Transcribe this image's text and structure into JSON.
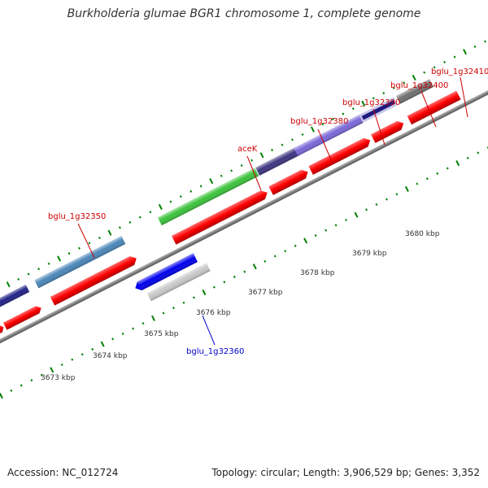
{
  "title": "Burkholderia glumae BGR1 chromosome 1, complete genome",
  "footer": {
    "accession": "Accession: NC_012724",
    "summary": "Topology: circular; Length: 3,906,529 bp; Genes: 3,352"
  },
  "colors": {
    "axis": "#808080",
    "cds": "#ff0000",
    "tick": "#008000",
    "label_forward": "#cc0000",
    "label_reverse": "#0000cc"
  },
  "ticks_kbp": [
    {
      "label": "3673 kbp",
      "kbp": 3673
    },
    {
      "label": "3674 kbp",
      "kbp": 3674
    },
    {
      "label": "3675 kbp",
      "kbp": 3675
    },
    {
      "label": "3676 kbp",
      "kbp": 3676
    },
    {
      "label": "3677 kbp",
      "kbp": 3677
    },
    {
      "label": "3678 kbp",
      "kbp": 3678
    },
    {
      "label": "3679 kbp",
      "kbp": 3679
    },
    {
      "label": "3680 kbp",
      "kbp": 3680
    }
  ],
  "genes": [
    {
      "name": "bglu_1g32350",
      "strand": "forward",
      "color": "#4a86b8",
      "labeled": true
    },
    {
      "name": "bglu_1g32360",
      "strand": "reverse",
      "color": "#0000ee",
      "labeled": true
    },
    {
      "name": "aceK",
      "strand": "forward",
      "color": "#3cc23c",
      "labeled": true
    },
    {
      "name": "bglu_1g32380",
      "strand": "forward",
      "color": "#3d3580",
      "labeled": true
    },
    {
      "name": "bglu_1g32390",
      "strand": "forward",
      "color": "#7b68d8",
      "labeled": true
    },
    {
      "name": "bglu_1g32400",
      "strand": "forward",
      "color": "#3a3590",
      "labeled": true
    },
    {
      "name": "bglu_1g32410",
      "strand": "forward",
      "color": "#707070",
      "labeled": true
    }
  ]
}
